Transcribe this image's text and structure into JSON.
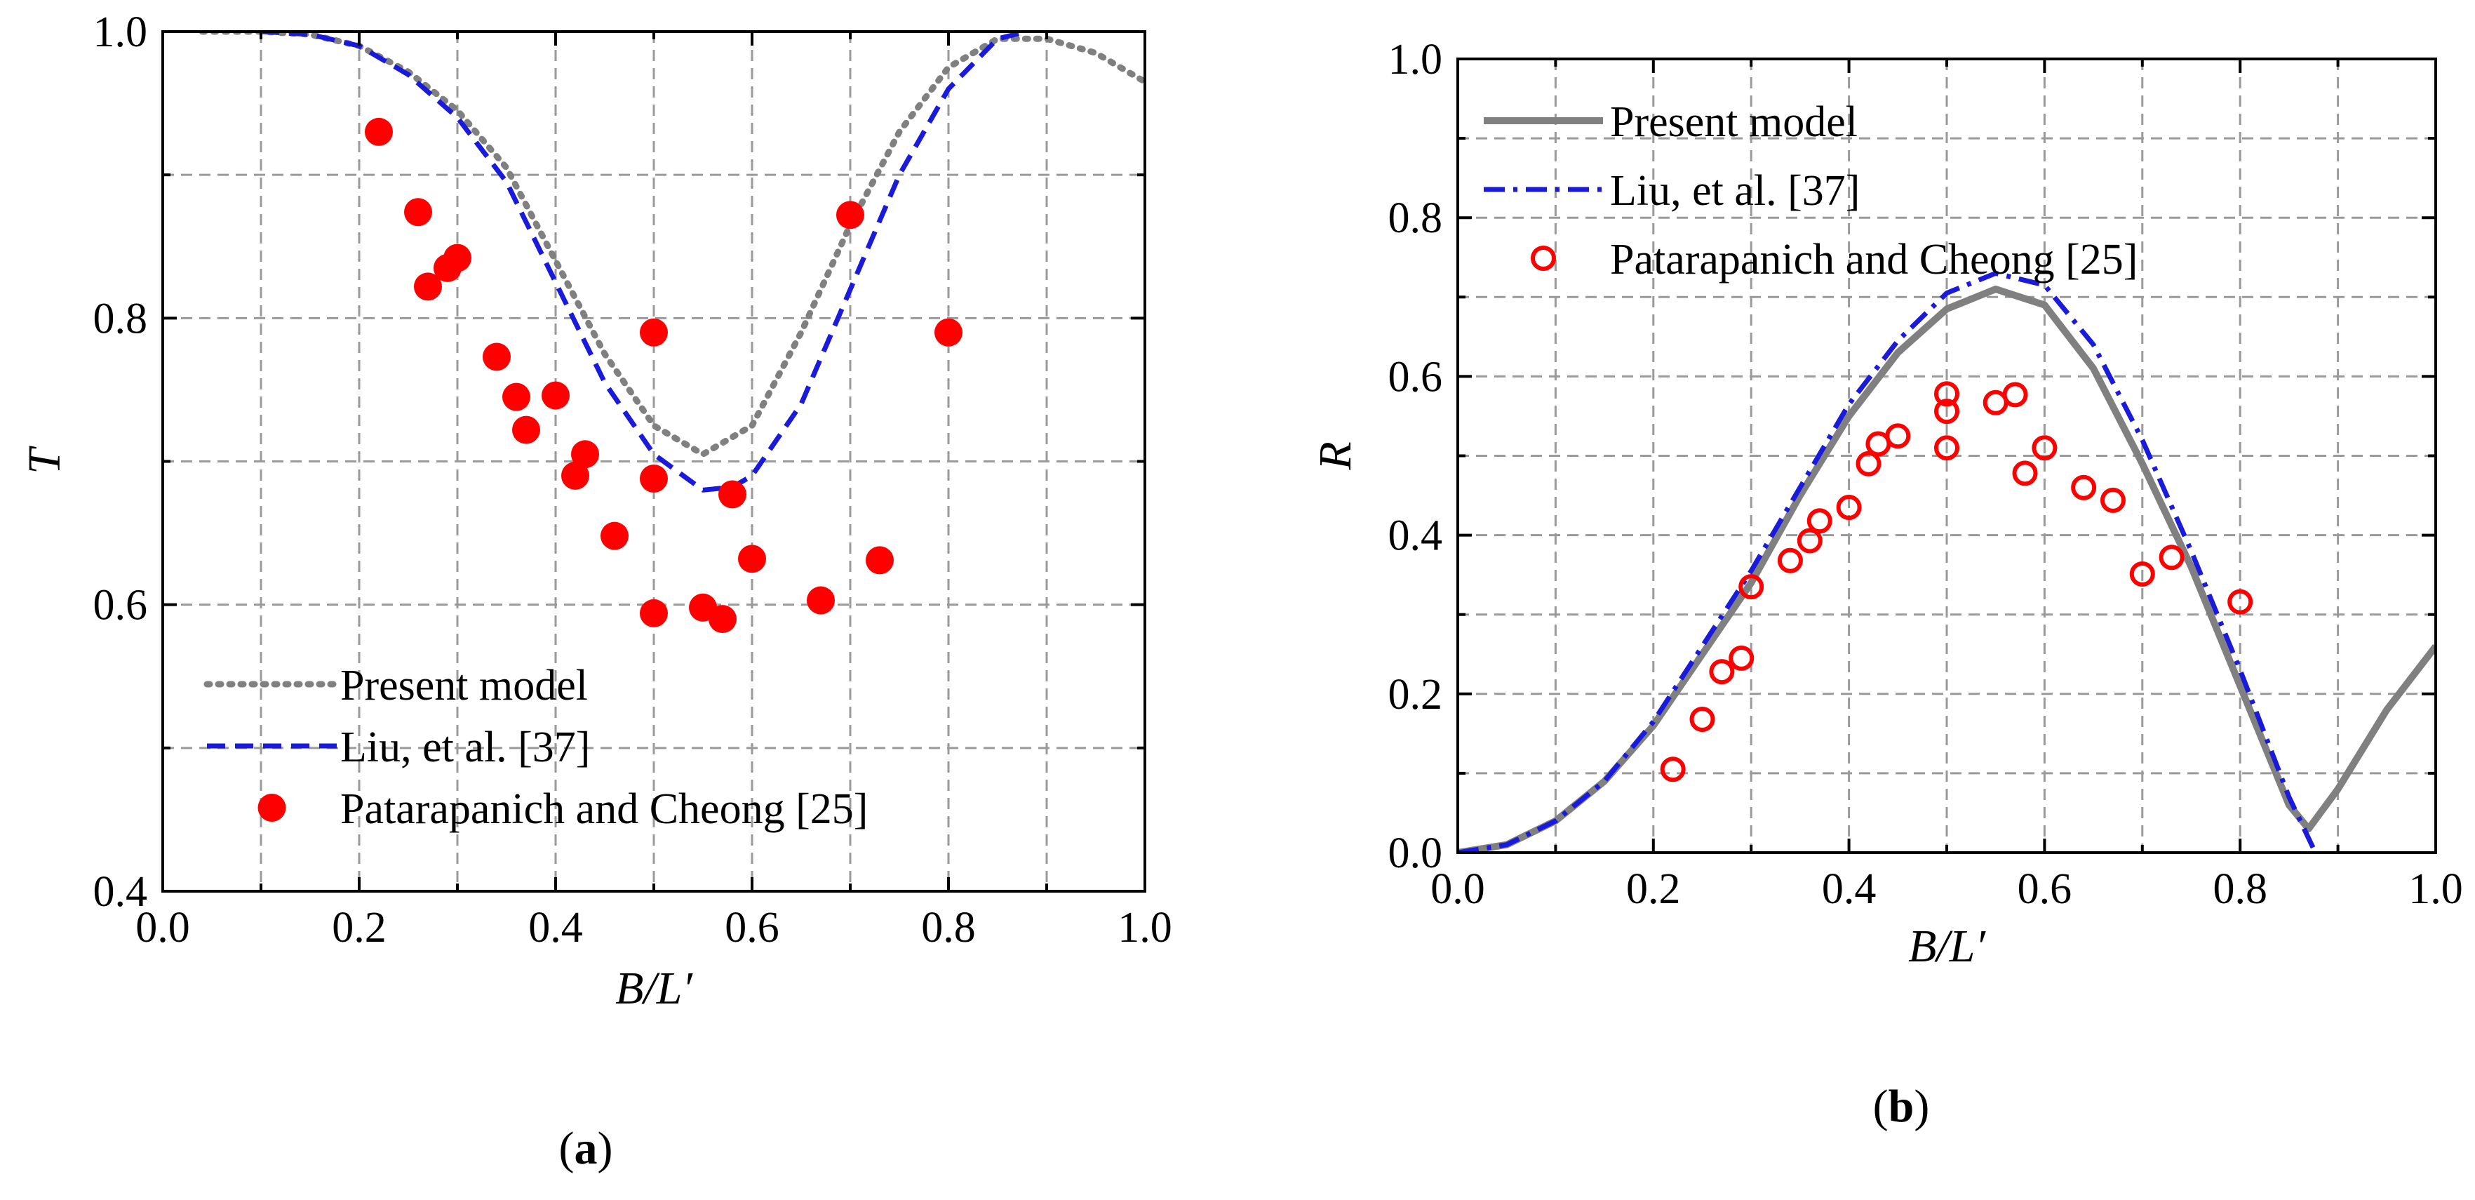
{
  "figure": {
    "panel_a_label": "a",
    "panel_b_label": "b"
  },
  "chart_data": [
    {
      "id": "a",
      "type": "line",
      "xlabel": "B/L′",
      "ylabel": "T",
      "xlim": [
        0.0,
        1.0
      ],
      "ylim": [
        0.4,
        1.0
      ],
      "grid": true,
      "xticks": [
        "0.0",
        "0.2",
        "0.4",
        "0.6",
        "0.8",
        "1.0"
      ],
      "yticks": [
        "0.4",
        "0.6",
        "0.8",
        "1.0"
      ],
      "legend_position": "bottom-left",
      "series": [
        {
          "name": "Present model",
          "kind": "line",
          "style": "dotted",
          "color": "#808080",
          "x": [
            0.04,
            0.1,
            0.15,
            0.2,
            0.25,
            0.3,
            0.35,
            0.4,
            0.45,
            0.5,
            0.55,
            0.6,
            0.65,
            0.7,
            0.75,
            0.8,
            0.85,
            0.9,
            0.95,
            1.0
          ],
          "y": [
            1.0,
            1.0,
            0.998,
            0.99,
            0.972,
            0.945,
            0.905,
            0.84,
            0.775,
            0.725,
            0.705,
            0.725,
            0.79,
            0.865,
            0.93,
            0.975,
            0.995,
            0.995,
            0.985,
            0.965
          ]
        },
        {
          "name": "Liu, et al. [37]",
          "kind": "line",
          "style": "dashed",
          "color": "#1a1adb",
          "x": [
            0.1,
            0.15,
            0.2,
            0.25,
            0.3,
            0.35,
            0.4,
            0.45,
            0.5,
            0.55,
            0.58,
            0.6,
            0.65,
            0.7,
            0.75,
            0.8,
            0.85,
            0.88
          ],
          "y": [
            1.0,
            0.998,
            0.99,
            0.97,
            0.94,
            0.895,
            0.825,
            0.755,
            0.705,
            0.68,
            0.682,
            0.69,
            0.74,
            0.82,
            0.9,
            0.96,
            0.995,
            1.0
          ]
        },
        {
          "name": "Patarapanich and Cheong [25]",
          "kind": "scatter",
          "marker": "filled-circle",
          "color": "#ff0000",
          "x": [
            0.22,
            0.26,
            0.27,
            0.29,
            0.3,
            0.34,
            0.36,
            0.37,
            0.4,
            0.42,
            0.43,
            0.46,
            0.5,
            0.5,
            0.5,
            0.55,
            0.57,
            0.58,
            0.6,
            0.67,
            0.7,
            0.73,
            0.8
          ],
          "y": [
            0.93,
            0.874,
            0.822,
            0.835,
            0.842,
            0.773,
            0.745,
            0.722,
            0.746,
            0.69,
            0.705,
            0.648,
            0.79,
            0.688,
            0.594,
            0.598,
            0.59,
            0.677,
            0.632,
            0.603,
            0.872,
            0.631,
            0.79
          ]
        }
      ]
    },
    {
      "id": "b",
      "type": "line",
      "xlabel": "B/L′",
      "ylabel": "R",
      "xlim": [
        0.0,
        1.0
      ],
      "ylim": [
        0.0,
        1.0
      ],
      "grid": true,
      "xticks": [
        "0.0",
        "0.2",
        "0.4",
        "0.6",
        "0.8",
        "1.0"
      ],
      "yticks": [
        "0.0",
        "0.2",
        "0.4",
        "0.6",
        "0.8",
        "1.0"
      ],
      "legend_position": "top-left",
      "series": [
        {
          "name": "Present model",
          "kind": "line",
          "style": "solid",
          "color": "#808080",
          "x": [
            0.0,
            0.05,
            0.1,
            0.15,
            0.2,
            0.25,
            0.3,
            0.35,
            0.4,
            0.45,
            0.5,
            0.55,
            0.6,
            0.65,
            0.7,
            0.75,
            0.8,
            0.85,
            0.87,
            0.9,
            0.95,
            1.0
          ],
          "y": [
            0.0,
            0.01,
            0.04,
            0.09,
            0.16,
            0.25,
            0.34,
            0.45,
            0.55,
            0.63,
            0.685,
            0.71,
            0.69,
            0.61,
            0.49,
            0.36,
            0.21,
            0.06,
            0.03,
            0.08,
            0.18,
            0.26
          ]
        },
        {
          "name": "Liu, et al. [37]",
          "kind": "line",
          "style": "dash-dot",
          "color": "#1a1adb",
          "x": [
            0.0,
            0.05,
            0.1,
            0.15,
            0.2,
            0.25,
            0.3,
            0.35,
            0.4,
            0.45,
            0.5,
            0.55,
            0.6,
            0.65,
            0.7,
            0.75,
            0.8,
            0.85,
            0.875
          ],
          "y": [
            0.0,
            0.01,
            0.04,
            0.09,
            0.165,
            0.26,
            0.355,
            0.46,
            0.565,
            0.645,
            0.705,
            0.73,
            0.715,
            0.64,
            0.52,
            0.38,
            0.23,
            0.07,
            0.005
          ]
        },
        {
          "name": "Patarapanich and Cheong [25]",
          "kind": "scatter",
          "marker": "open-circle",
          "color": "#ff0000",
          "x": [
            0.22,
            0.25,
            0.27,
            0.29,
            0.3,
            0.34,
            0.36,
            0.37,
            0.4,
            0.42,
            0.43,
            0.45,
            0.5,
            0.5,
            0.5,
            0.55,
            0.57,
            0.58,
            0.6,
            0.64,
            0.67,
            0.7,
            0.73,
            0.8
          ],
          "y": [
            0.105,
            0.168,
            0.228,
            0.245,
            0.335,
            0.368,
            0.393,
            0.418,
            0.435,
            0.49,
            0.515,
            0.525,
            0.578,
            0.556,
            0.51,
            0.567,
            0.577,
            0.478,
            0.51,
            0.46,
            0.444,
            0.351,
            0.372,
            0.316
          ]
        }
      ]
    }
  ]
}
